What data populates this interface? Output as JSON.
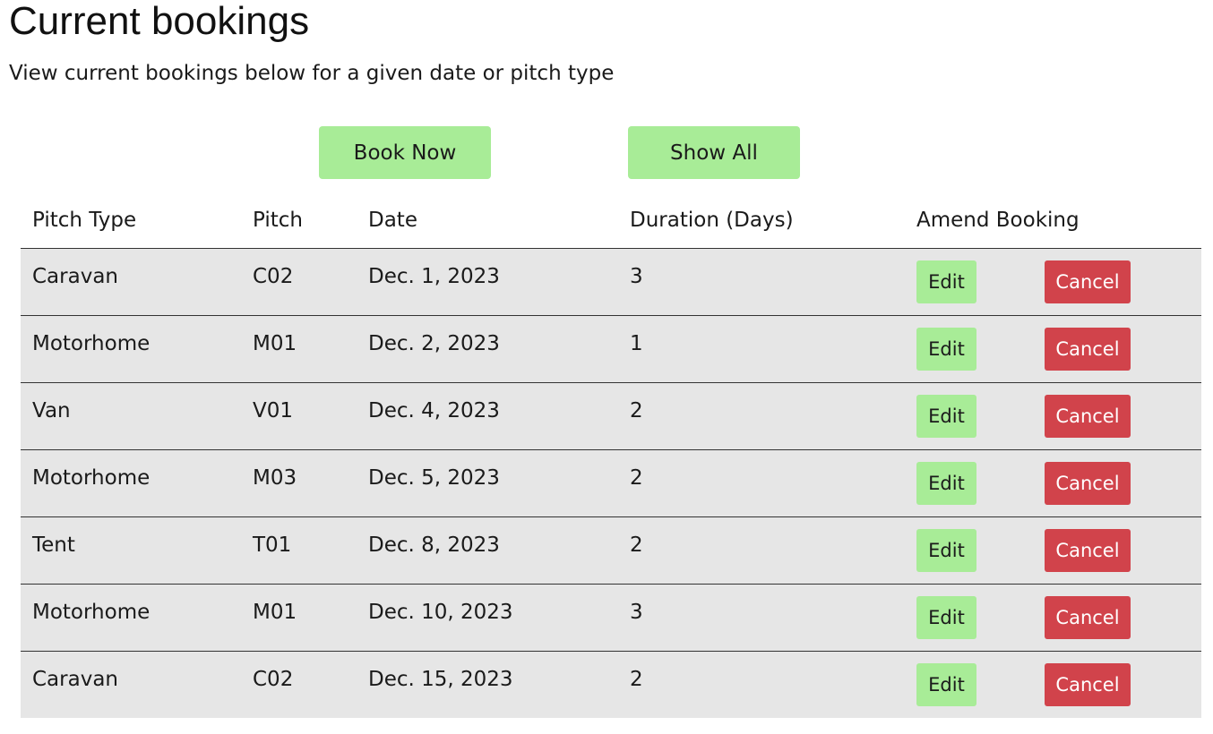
{
  "page": {
    "title": "Current bookings",
    "subtitle": "View current bookings below for a given date or pitch type"
  },
  "actions": {
    "book_now": "Book Now",
    "show_all": "Show All"
  },
  "table": {
    "headers": [
      "Pitch Type",
      "Pitch",
      "Date",
      "Duration (Days)",
      "Amend Booking"
    ],
    "edit_label": "Edit",
    "cancel_label": "Cancel",
    "rows": [
      {
        "pitch_type": "Caravan",
        "pitch": "C02",
        "date": "Dec. 1, 2023",
        "duration": "3"
      },
      {
        "pitch_type": "Motorhome",
        "pitch": "M01",
        "date": "Dec. 2, 2023",
        "duration": "1"
      },
      {
        "pitch_type": "Van",
        "pitch": "V01",
        "date": "Dec. 4, 2023",
        "duration": "2"
      },
      {
        "pitch_type": "Motorhome",
        "pitch": "M03",
        "date": "Dec. 5, 2023",
        "duration": "2"
      },
      {
        "pitch_type": "Tent",
        "pitch": "T01",
        "date": "Dec. 8, 2023",
        "duration": "2"
      },
      {
        "pitch_type": "Motorhome",
        "pitch": "M01",
        "date": "Dec. 10, 2023",
        "duration": "3"
      },
      {
        "pitch_type": "Caravan",
        "pitch": "C02",
        "date": "Dec. 15, 2023",
        "duration": "2"
      }
    ]
  },
  "colors": {
    "primary_button": "#a8ec97",
    "danger_button": "#d1434b",
    "row_background": "#e6e6e6"
  }
}
